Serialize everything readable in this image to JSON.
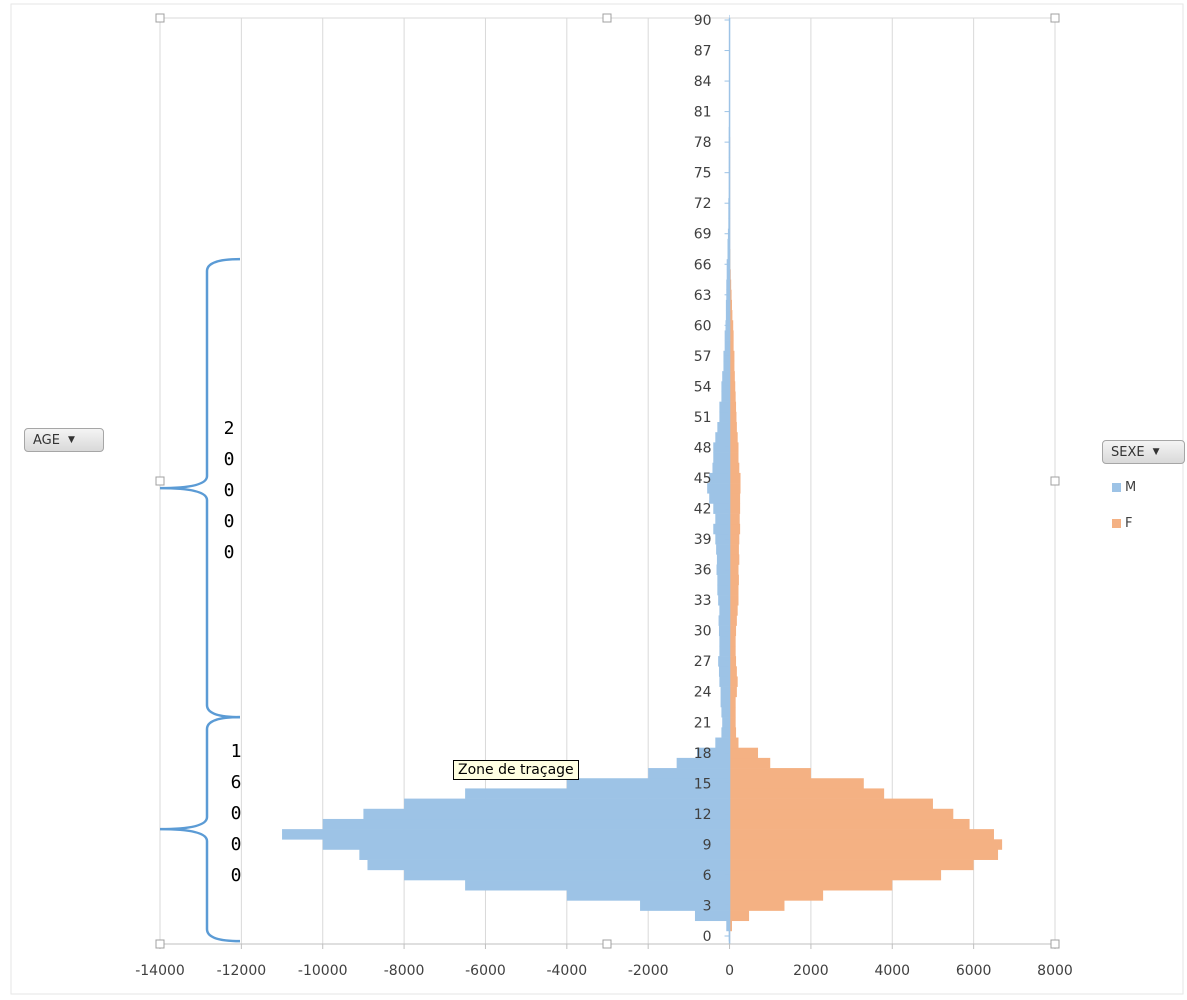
{
  "chart_data": {
    "type": "bar",
    "orientation": "horizontal",
    "title": "",
    "xlim": [
      -14000,
      8000
    ],
    "x_ticks": [
      "-14000",
      "-12000",
      "-10000",
      "-8000",
      "-6000",
      "-4000",
      "-2000",
      "0",
      "2000",
      "4000",
      "6000",
      "8000"
    ],
    "y_ticks": [
      "0",
      "3",
      "6",
      "9",
      "12",
      "15",
      "18",
      "21",
      "24",
      "27",
      "30",
      "33",
      "36",
      "39",
      "42",
      "45",
      "48",
      "51",
      "54",
      "57",
      "60",
      "63",
      "66",
      "69",
      "72",
      "75",
      "78",
      "81",
      "84",
      "87",
      "90"
    ],
    "categories": [
      0,
      1,
      2,
      3,
      4,
      5,
      6,
      7,
      8,
      9,
      10,
      11,
      12,
      13,
      14,
      15,
      16,
      17,
      18,
      19,
      20,
      21,
      22,
      23,
      24,
      25,
      26,
      27,
      28,
      29,
      30,
      31,
      32,
      33,
      34,
      35,
      36,
      37,
      38,
      39,
      40,
      41,
      42,
      43,
      44,
      45,
      46,
      47,
      48,
      49,
      50,
      51,
      52,
      53,
      54,
      55,
      56,
      57,
      58,
      59,
      60,
      61,
      62,
      63,
      64,
      65,
      66,
      67,
      68,
      69,
      70,
      71,
      72,
      73,
      74,
      75,
      76,
      77,
      78,
      79,
      80,
      81,
      82,
      83,
      84,
      85,
      86,
      87,
      88,
      89,
      90
    ],
    "grid": "vertical",
    "legend_position": "right",
    "series": [
      {
        "name": "M",
        "color": "#9dc3e6",
        "values": [
          -20,
          -80,
          -850,
          -2200,
          -4000,
          -6500,
          -8000,
          -8900,
          -9100,
          -10000,
          -11000,
          -10000,
          -9000,
          -8000,
          -6500,
          -4000,
          -2000,
          -1300,
          -800,
          -350,
          -200,
          -180,
          -200,
          -220,
          -220,
          -250,
          -260,
          -280,
          -250,
          -250,
          -260,
          -270,
          -250,
          -280,
          -300,
          -300,
          -320,
          -310,
          -330,
          -350,
          -400,
          -350,
          -400,
          -500,
          -550,
          -500,
          -420,
          -400,
          -400,
          -350,
          -300,
          -250,
          -250,
          -200,
          -200,
          -180,
          -150,
          -150,
          -120,
          -120,
          -100,
          -90,
          -90,
          -80,
          -80,
          -70,
          -70,
          -50,
          -50,
          -40,
          -30,
          -30,
          -30,
          -20,
          -20,
          -20,
          -20,
          -20,
          -20,
          -20,
          -10,
          -10,
          -10,
          -10,
          -10,
          -10,
          -10,
          -10,
          -10,
          -10,
          -10
        ]
      },
      {
        "name": "F",
        "color": "#f4b183",
        "values": [
          10,
          60,
          480,
          1350,
          2300,
          4000,
          5200,
          6000,
          6600,
          6700,
          6500,
          5900,
          5500,
          5000,
          3800,
          3300,
          2000,
          1000,
          700,
          220,
          160,
          150,
          150,
          150,
          180,
          200,
          180,
          160,
          150,
          150,
          160,
          180,
          200,
          220,
          220,
          230,
          220,
          240,
          230,
          240,
          260,
          250,
          260,
          260,
          270,
          270,
          240,
          220,
          220,
          200,
          180,
          170,
          160,
          150,
          140,
          130,
          120,
          120,
          100,
          100,
          90,
          70,
          60,
          50,
          40,
          30,
          20,
          20,
          10,
          10,
          10,
          10,
          10,
          10,
          10,
          10,
          10,
          10,
          10,
          0,
          0,
          0,
          0,
          0,
          0,
          0,
          0,
          0,
          0,
          0,
          0
        ]
      }
    ],
    "row_brackets": [
      {
        "label": "20000",
        "from": 22,
        "to": 66
      },
      {
        "label": "16000",
        "from": 0,
        "to": 21
      }
    ]
  },
  "ui": {
    "row_field_button": "AGE",
    "column_field_button": "SEXE",
    "tooltip": "Zone de traçage"
  }
}
